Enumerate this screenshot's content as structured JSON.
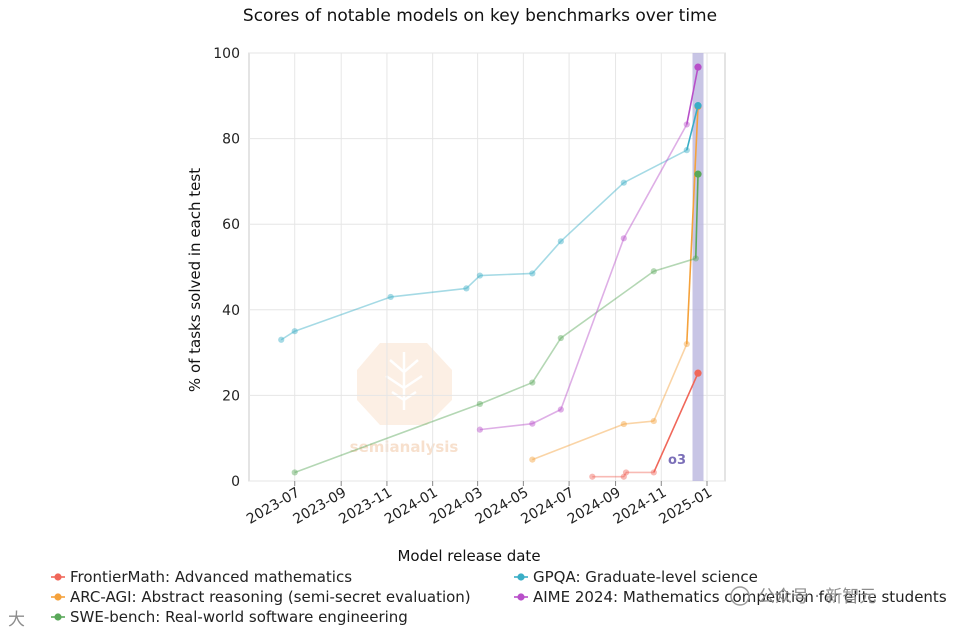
{
  "chart_data": {
    "type": "line",
    "title": "Scores of notable models on key benchmarks over time",
    "xlabel": "Model release date",
    "ylabel": "% of tasks solved in each test",
    "ylim": [
      0,
      100
    ],
    "xlim": [
      "2023-05-01",
      "2025-01-25"
    ],
    "xticks": [
      "2023-07",
      "2023-09",
      "2023-11",
      "2024-01",
      "2024-03",
      "2024-05",
      "2024-07",
      "2024-09",
      "2024-11",
      "2025-01"
    ],
    "yticks": [
      0,
      20,
      40,
      60,
      80,
      100
    ],
    "grid": true,
    "legend_position": "bottom",
    "highlight": {
      "label": "o3",
      "date": "2024-12-20"
    },
    "series": [
      {
        "name": "FrontierMath: Advanced mathematics",
        "color": "#f0675a",
        "x": [
          "2024-08-01",
          "2024-09-12",
          "2024-09-15",
          "2024-10-22",
          "2024-12-20"
        ],
        "y": [
          1,
          1,
          2,
          2,
          25.2
        ]
      },
      {
        "name": "ARC-AGI: Abstract reasoning (semi-secret evaluation)",
        "color": "#f5a23c",
        "x": [
          "2024-05-13",
          "2024-09-12",
          "2024-10-22",
          "2024-12-05",
          "2024-12-20"
        ],
        "y": [
          5,
          13.3,
          14,
          32,
          87.5
        ]
      },
      {
        "name": "SWE-bench: Real-world software engineering",
        "color": "#5aa85a",
        "x": [
          "2023-07-01",
          "2024-03-04",
          "2024-05-13",
          "2024-06-20",
          "2024-10-22",
          "2024-12-17",
          "2024-12-20"
        ],
        "y": [
          2,
          18,
          23,
          33.4,
          49,
          52,
          71.7
        ]
      },
      {
        "name": "GPQA: Graduate-level science",
        "color": "#3aaec6",
        "x": [
          "2023-06-13",
          "2023-07-01",
          "2023-11-06",
          "2024-02-15",
          "2024-03-04",
          "2024-05-13",
          "2024-06-20",
          "2024-09-12",
          "2024-12-05",
          "2024-12-20"
        ],
        "y": [
          33,
          35,
          43,
          45,
          48,
          48.5,
          56,
          69.7,
          77.3,
          87.7
        ]
      },
      {
        "name": "AIME 2024: Mathematics competition for elite students",
        "color": "#b84fc9",
        "x": [
          "2024-03-04",
          "2024-05-13",
          "2024-06-20",
          "2024-09-12",
          "2024-12-05",
          "2024-12-20"
        ],
        "y": [
          12,
          13.4,
          16.7,
          56.7,
          83.3,
          96.7
        ]
      }
    ],
    "watermark": "semianalysis"
  },
  "overlay": {
    "wechat_source": "公众号 · 新智元",
    "corner_mark": "大"
  }
}
